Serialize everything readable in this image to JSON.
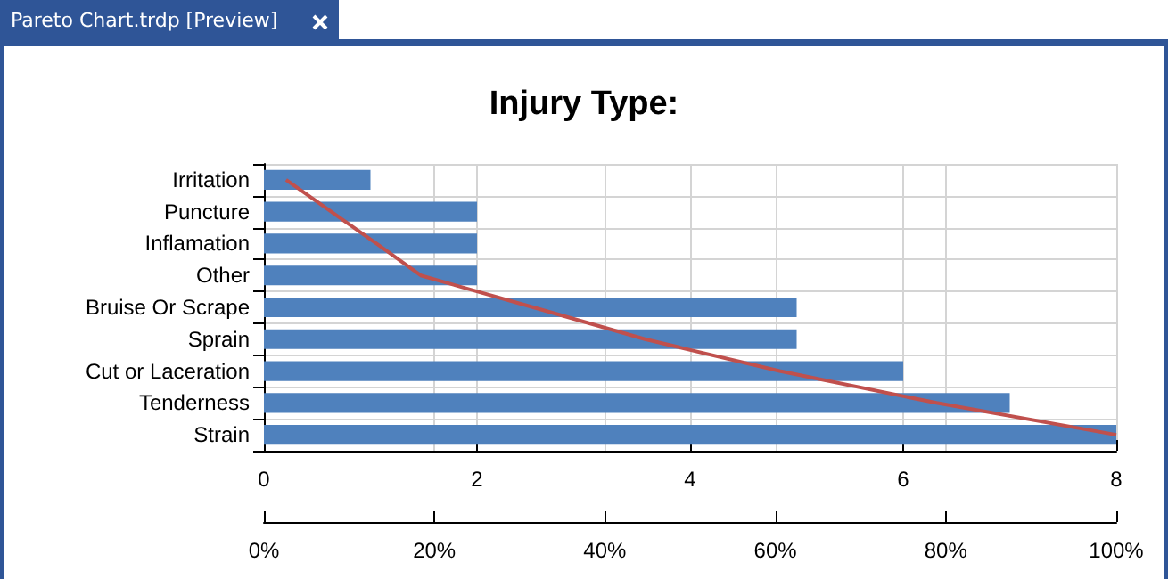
{
  "chart_data": {
    "type": "bar",
    "orientation": "horizontal",
    "title": "Injury Type:",
    "annotations": [
      "Pareto Chart.trdp [Preview]"
    ],
    "categories": [
      "Irritation",
      "Puncture",
      "Inflamation",
      "Other",
      "Bruise Or Scrape",
      "Sprain",
      "Cut or Laceration",
      "Tenderness",
      "Strain"
    ],
    "series": [
      {
        "color": "#4f81bd",
        "values": [
          1,
          2,
          2,
          2,
          5,
          5,
          6,
          7,
          8
        ]
      },
      {
        "type": "line",
        "axis": "x2",
        "color": "#c0504d",
        "values": [
          2.6,
          7.9,
          13.2,
          18.4,
          31.6,
          44.7,
          60.5,
          78.9,
          100
        ]
      }
    ],
    "xlim": [
      0,
      8
    ],
    "xticks": [
      0,
      2,
      4,
      6,
      8
    ],
    "x2lim": [
      0,
      100
    ],
    "x2ticks": [
      {
        "value": 0,
        "label": "0%"
      },
      {
        "value": 20,
        "label": "20%"
      },
      {
        "value": 40,
        "label": "40%"
      },
      {
        "value": 60,
        "label": "60%"
      },
      {
        "value": 80,
        "label": "80%"
      },
      {
        "value": 100,
        "label": "100%"
      }
    ],
    "grid": true,
    "marker": "none"
  }
}
